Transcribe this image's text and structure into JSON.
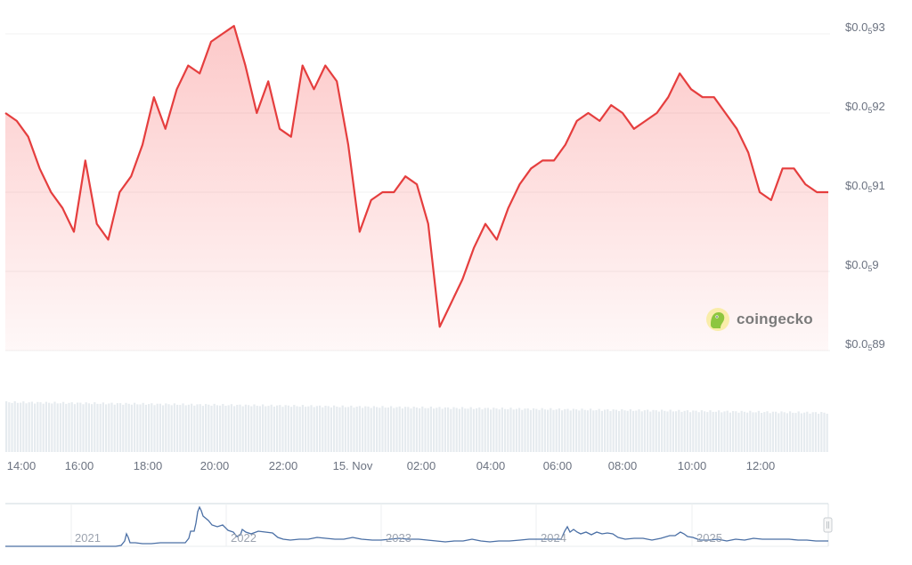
{
  "chart_data": {
    "type": "line",
    "title": "",
    "xlabel": "",
    "ylabel": "",
    "series": [
      {
        "name": "Price",
        "color": "#e53e3e",
        "x": [
          "13:45",
          "14:00",
          "14:30",
          "15:00",
          "15:30",
          "15:50",
          "16:00",
          "16:20",
          "16:40",
          "17:00",
          "17:20",
          "17:40",
          "17:50",
          "18:00",
          "18:20",
          "18:40",
          "19:00",
          "19:20",
          "19:40",
          "19:50",
          "20:00",
          "20:20",
          "20:40",
          "21:00",
          "21:20",
          "21:40",
          "22:00",
          "22:20",
          "22:40",
          "23:00",
          "23:20",
          "23:40",
          "00:00",
          "00:20",
          "00:40",
          "01:00",
          "01:20",
          "01:40",
          "02:00",
          "02:10",
          "02:30",
          "02:50",
          "03:10",
          "03:30",
          "03:50",
          "04:10",
          "04:30",
          "04:50",
          "05:10",
          "05:30",
          "06:00",
          "06:30",
          "07:00",
          "07:20",
          "07:40",
          "08:00",
          "08:20",
          "08:40",
          "09:00",
          "09:20",
          "09:40",
          "10:00",
          "10:20",
          "10:40",
          "11:00",
          "11:20",
          "11:40",
          "12:00",
          "12:20",
          "12:40",
          "13:00",
          "13:20",
          "13:45"
        ],
        "values": [
          0.0592,
          0.05919,
          0.05917,
          0.05913,
          0.0591,
          0.05908,
          0.05905,
          0.05914,
          0.05906,
          0.05904,
          0.0591,
          0.05912,
          0.05916,
          0.05922,
          0.05918,
          0.05923,
          0.05926,
          0.05925,
          0.05929,
          0.0593,
          0.05931,
          0.05926,
          0.0592,
          0.05924,
          0.05918,
          0.05917,
          0.05926,
          0.05923,
          0.05926,
          0.05924,
          0.05916,
          0.05905,
          0.05909,
          0.0591,
          0.0591,
          0.05912,
          0.05911,
          0.05906,
          0.05893,
          0.05896,
          0.05899,
          0.05903,
          0.05906,
          0.05904,
          0.05908,
          0.05911,
          0.05913,
          0.05914,
          0.05914,
          0.05916,
          0.05919,
          0.0592,
          0.05919,
          0.05921,
          0.0592,
          0.05918,
          0.05919,
          0.0592,
          0.05922,
          0.05925,
          0.05923,
          0.05922,
          0.05922,
          0.0592,
          0.05918,
          0.05915,
          0.0591,
          0.05909,
          0.05913,
          0.05913,
          0.05911,
          0.0591,
          0.0591
        ]
      }
    ],
    "y_ticks": [
      "$0.0₅93",
      "$0.0₅92",
      "$0.0₅91",
      "$0.0₅9",
      "$0.0₅89"
    ],
    "y_tick_values": [
      0.0593,
      0.0592,
      0.0591,
      0.059,
      0.0589
    ],
    "ylim": [
      0.05888,
      0.05932
    ],
    "x_ticks": [
      "14:00",
      "16:00",
      "18:00",
      "20:00",
      "22:00",
      "15. Nov",
      "02:00",
      "04:00",
      "06:00",
      "08:00",
      "10:00",
      "12:00"
    ],
    "grid": true,
    "legend": "none",
    "volume": {
      "type": "bar",
      "color": "#e5e9ed",
      "note": "dense uniform volume bars, slightly decreasing to the right"
    },
    "navigator": {
      "type": "line",
      "color": "#4a6fa5",
      "x_ticks": [
        "2021",
        "2022",
        "2023",
        "2024",
        "2025"
      ]
    }
  },
  "y_axis": {
    "labels": [
      {
        "prefix": "$0.0",
        "sub": "5",
        "suffix": "93"
      },
      {
        "prefix": "$0.0",
        "sub": "5",
        "suffix": "92"
      },
      {
        "prefix": "$0.0",
        "sub": "5",
        "suffix": "91"
      },
      {
        "prefix": "$0.0",
        "sub": "5",
        "suffix": "9"
      },
      {
        "prefix": "$0.0",
        "sub": "5",
        "suffix": "89"
      }
    ]
  },
  "x_axis": {
    "labels": [
      "14:00",
      "16:00",
      "18:00",
      "20:00",
      "22:00",
      "15. Nov",
      "02:00",
      "04:00",
      "06:00",
      "08:00",
      "10:00",
      "12:00"
    ]
  },
  "navigator": {
    "labels": [
      "2021",
      "2022",
      "2023",
      "2024",
      "2025"
    ]
  },
  "watermark": {
    "text": "coingecko",
    "icon": "gecko-logo-icon"
  }
}
